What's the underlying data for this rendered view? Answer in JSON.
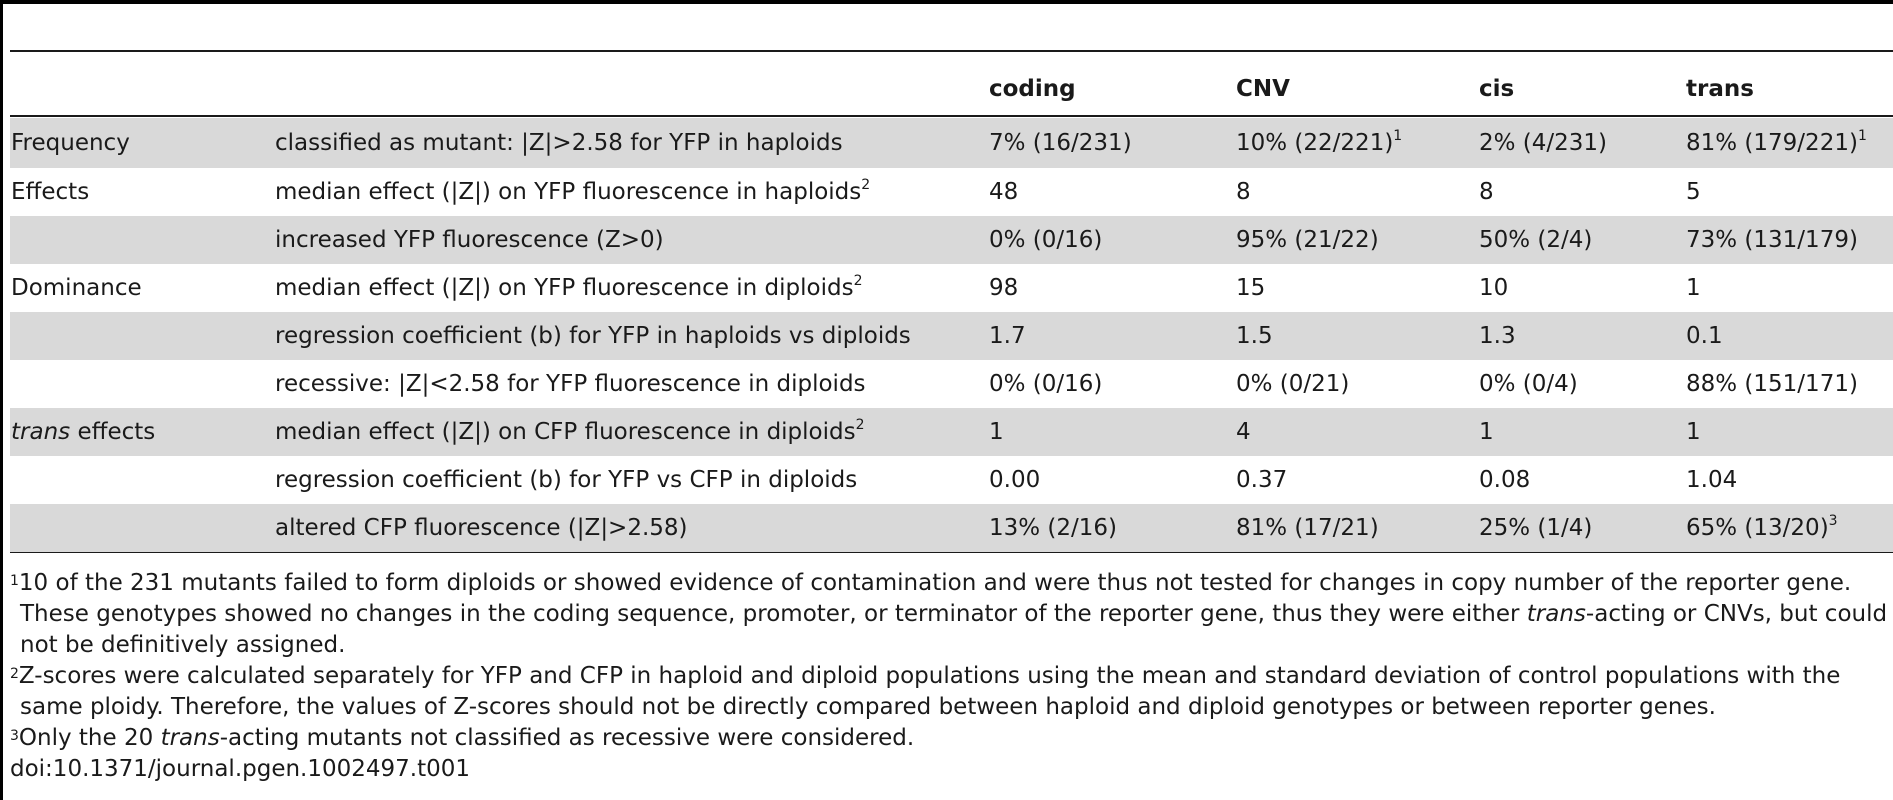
{
  "table": {
    "headers": [
      "",
      "",
      "coding",
      "CNV",
      "cis",
      "trans"
    ],
    "rows": [
      {
        "group": "Frequency",
        "group_italic": "",
        "measure": "classified as mutant: |Z|>2.58 for YFP in haploids",
        "measure_sup": "",
        "coding": "7% (16/231)",
        "coding_sup": "",
        "cnv": "10% (22/221)",
        "cnv_sup": "1",
        "cis": "2% (4/231)",
        "cis_sup": "",
        "trans": "81% (179/221)",
        "trans_sup": "1",
        "shaded": true
      },
      {
        "group": "Effects",
        "group_italic": "",
        "measure": "median effect (|Z|) on YFP fluorescence in haploids",
        "measure_sup": "2",
        "coding": "48",
        "coding_sup": "",
        "cnv": "8",
        "cnv_sup": "",
        "cis": "8",
        "cis_sup": "",
        "trans": "5",
        "trans_sup": "",
        "shaded": false
      },
      {
        "group": "",
        "group_italic": "",
        "measure": "increased YFP fluorescence (Z>0)",
        "measure_sup": "",
        "coding": "0% (0/16)",
        "coding_sup": "",
        "cnv": "95% (21/22)",
        "cnv_sup": "",
        "cis": "50% (2/4)",
        "cis_sup": "",
        "trans": "73% (131/179)",
        "trans_sup": "",
        "shaded": true
      },
      {
        "group": "Dominance",
        "group_italic": "",
        "measure": "median effect (|Z|) on YFP fluorescence in diploids",
        "measure_sup": "2",
        "coding": "98",
        "coding_sup": "",
        "cnv": "15",
        "cnv_sup": "",
        "cis": "10",
        "cis_sup": "",
        "trans": "1",
        "trans_sup": "",
        "shaded": false
      },
      {
        "group": "",
        "group_italic": "",
        "measure": "regression coefficient (b) for YFP in haploids vs diploids",
        "measure_sup": "",
        "coding": "1.7",
        "coding_sup": "",
        "cnv": "1.5",
        "cnv_sup": "",
        "cis": "1.3",
        "cis_sup": "",
        "trans": "0.1",
        "trans_sup": "",
        "shaded": true
      },
      {
        "group": "",
        "group_italic": "",
        "measure": "recessive: |Z|<2.58 for YFP fluorescence in diploids",
        "measure_sup": "",
        "coding": "0% (0/16)",
        "coding_sup": "",
        "cnv": "0% (0/21)",
        "cnv_sup": "",
        "cis": "0% (0/4)",
        "cis_sup": "",
        "trans": "88% (151/171)",
        "trans_sup": "",
        "shaded": false
      },
      {
        "group": " effects",
        "group_italic": "trans",
        "measure": "median effect (|Z|) on CFP fluorescence in diploids",
        "measure_sup": "2",
        "coding": "1",
        "coding_sup": "",
        "cnv": "4",
        "cnv_sup": "",
        "cis": "1",
        "cis_sup": "",
        "trans": "1",
        "trans_sup": "",
        "shaded": true
      },
      {
        "group": "",
        "group_italic": "",
        "measure": "regression coefficient (b) for YFP vs CFP in diploids",
        "measure_sup": "",
        "coding": "0.00",
        "coding_sup": "",
        "cnv": "0.37",
        "cnv_sup": "",
        "cis": "0.08",
        "cis_sup": "",
        "trans": "1.04",
        "trans_sup": "",
        "shaded": false
      },
      {
        "group": "",
        "group_italic": "",
        "measure": "altered CFP fluorescence (|Z|>2.58)",
        "measure_sup": "",
        "coding": "13% (2/16)",
        "coding_sup": "",
        "cnv": "81% (17/21)",
        "cnv_sup": "",
        "cis": "25% (1/4)",
        "cis_sup": "",
        "trans": "65% (13/20)",
        "trans_sup": "3",
        "shaded": true
      }
    ]
  },
  "footnotes": {
    "n1_mark": "1",
    "n1_a": "10 of the 231 mutants failed to form diploids or showed evidence of contamination and were thus not tested for changes in copy number of the reporter gene. These genotypes showed no changes in the coding sequence, promoter, or terminator of the reporter gene, thus they were either ",
    "n1_italic": "trans",
    "n1_b": "-acting or CNVs, but could not be definitively assigned.",
    "n2_mark": "2",
    "n2": "Z-scores were calculated separately for YFP and CFP in haploid and diploid populations using the mean and standard deviation of control populations with the same ploidy. Therefore, the values of Z-scores should not be directly compared between haploid and diploid genotypes or between reporter genes.",
    "n3_mark": "3",
    "n3_a": "Only the 20 ",
    "n3_italic": "trans",
    "n3_b": "-acting mutants not classified as recessive were considered.",
    "doi": "doi:10.1371/journal.pgen.1002497.t001"
  }
}
